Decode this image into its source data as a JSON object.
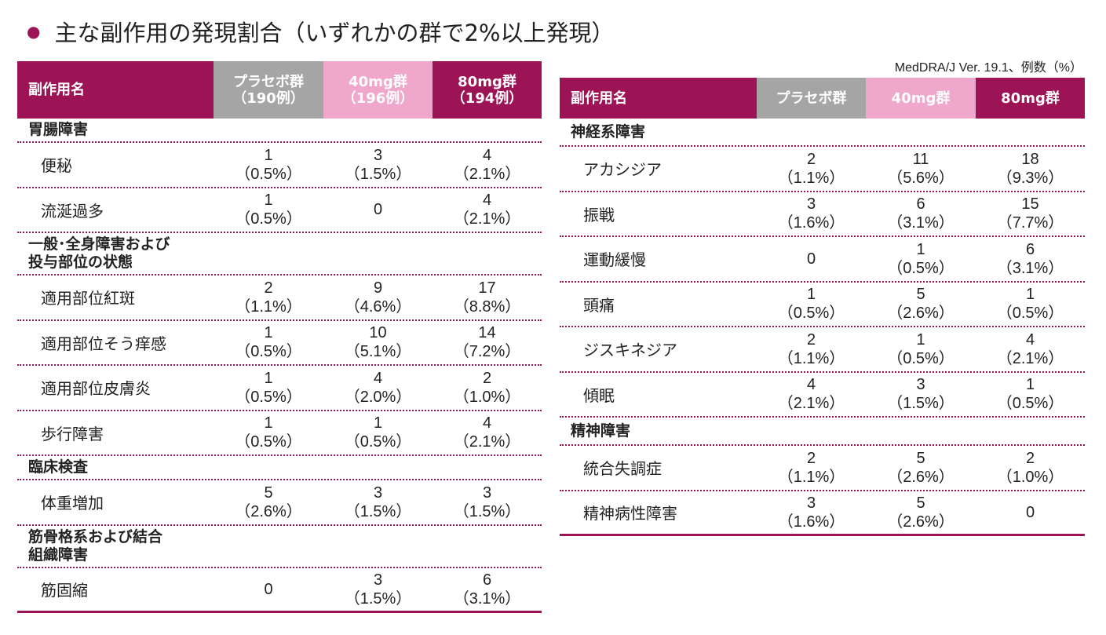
{
  "title": "主な副作用の発現割合（いずれかの群で2%以上発現）",
  "note": "MedDRA/J Ver. 19.1、例数（%）",
  "colors": {
    "accent": "#9c1456",
    "placebo": "#a5a5a5",
    "mg40": "#efa8cb"
  },
  "left_table": {
    "headers": {
      "name": "副作用名",
      "placebo": [
        "プラセボ群",
        "（190例）"
      ],
      "mg40": [
        "40mg群",
        "（196例）"
      ],
      "mg80": [
        "80mg群",
        "（194例）"
      ]
    },
    "sections": [
      {
        "category": [
          "胃腸障害"
        ],
        "items": [
          {
            "name": "便秘",
            "placebo": [
              "1",
              "（0.5%）"
            ],
            "mg40": [
              "3",
              "（1.5%）"
            ],
            "mg80": [
              "4",
              "（2.1%）"
            ]
          },
          {
            "name": "流涎過多",
            "placebo": [
              "1",
              "（0.5%）"
            ],
            "mg40": [
              "0"
            ],
            "mg80": [
              "4",
              "（2.1%）"
            ]
          }
        ]
      },
      {
        "category": [
          "一般･全身障害および",
          "投与部位の状態"
        ],
        "items": [
          {
            "name": "適用部位紅斑",
            "placebo": [
              "2",
              "（1.1%）"
            ],
            "mg40": [
              "9",
              "（4.6%）"
            ],
            "mg80": [
              "17",
              "（8.8%）"
            ]
          },
          {
            "name": "適用部位そう痒感",
            "placebo": [
              "1",
              "（0.5%）"
            ],
            "mg40": [
              "10",
              "（5.1%）"
            ],
            "mg80": [
              "14",
              "（7.2%）"
            ]
          },
          {
            "name": "適用部位皮膚炎",
            "placebo": [
              "1",
              "（0.5%）"
            ],
            "mg40": [
              "4",
              "（2.0%）"
            ],
            "mg80": [
              "2",
              "（1.0%）"
            ]
          },
          {
            "name": "歩行障害",
            "placebo": [
              "1",
              "（0.5%）"
            ],
            "mg40": [
              "1",
              "（0.5%）"
            ],
            "mg80": [
              "4",
              "（2.1%）"
            ]
          }
        ]
      },
      {
        "category": [
          "臨床検査"
        ],
        "items": [
          {
            "name": "体重増加",
            "placebo": [
              "5",
              "（2.6%）"
            ],
            "mg40": [
              "3",
              "（1.5%）"
            ],
            "mg80": [
              "3",
              "（1.5%）"
            ]
          }
        ]
      },
      {
        "category": [
          "筋骨格系および結合",
          "組織障害"
        ],
        "items": [
          {
            "name": "筋固縮",
            "placebo": [
              "0"
            ],
            "mg40": [
              "3",
              "（1.5%）"
            ],
            "mg80": [
              "6",
              "（3.1%）"
            ]
          }
        ]
      }
    ]
  },
  "right_table": {
    "headers": {
      "name": "副作用名",
      "placebo": [
        "プラセボ群"
      ],
      "mg40": [
        "40mg群"
      ],
      "mg80": [
        "80mg群"
      ]
    },
    "sections": [
      {
        "category": [
          "神経系障害"
        ],
        "items": [
          {
            "name": "アカシジア",
            "placebo": [
              "2",
              "（1.1%）"
            ],
            "mg40": [
              "11",
              "（5.6%）"
            ],
            "mg80": [
              "18",
              "（9.3%）"
            ]
          },
          {
            "name": "振戦",
            "placebo": [
              "3",
              "（1.6%）"
            ],
            "mg40": [
              "6",
              "（3.1%）"
            ],
            "mg80": [
              "15",
              "（7.7%）"
            ]
          },
          {
            "name": "運動緩慢",
            "placebo": [
              "0"
            ],
            "mg40": [
              "1",
              "（0.5%）"
            ],
            "mg80": [
              "6",
              "（3.1%）"
            ]
          },
          {
            "name": "頭痛",
            "placebo": [
              "1",
              "（0.5%）"
            ],
            "mg40": [
              "5",
              "（2.6%）"
            ],
            "mg80": [
              "1",
              "（0.5%）"
            ]
          },
          {
            "name": "ジスキネジア",
            "placebo": [
              "2",
              "（1.1%）"
            ],
            "mg40": [
              "1",
              "（0.5%）"
            ],
            "mg80": [
              "4",
              "（2.1%）"
            ]
          },
          {
            "name": "傾眠",
            "placebo": [
              "4",
              "（2.1%）"
            ],
            "mg40": [
              "3",
              "（1.5%）"
            ],
            "mg80": [
              "1",
              "（0.5%）"
            ]
          }
        ]
      },
      {
        "category": [
          "精神障害"
        ],
        "items": [
          {
            "name": "統合失調症",
            "placebo": [
              "2",
              "（1.1%）"
            ],
            "mg40": [
              "5",
              "（2.6%）"
            ],
            "mg80": [
              "2",
              "（1.0%）"
            ]
          },
          {
            "name": "精神病性障害",
            "placebo": [
              "3",
              "（1.6%）"
            ],
            "mg40": [
              "5",
              "（2.6%）"
            ],
            "mg80": [
              "0"
            ]
          }
        ]
      }
    ]
  }
}
